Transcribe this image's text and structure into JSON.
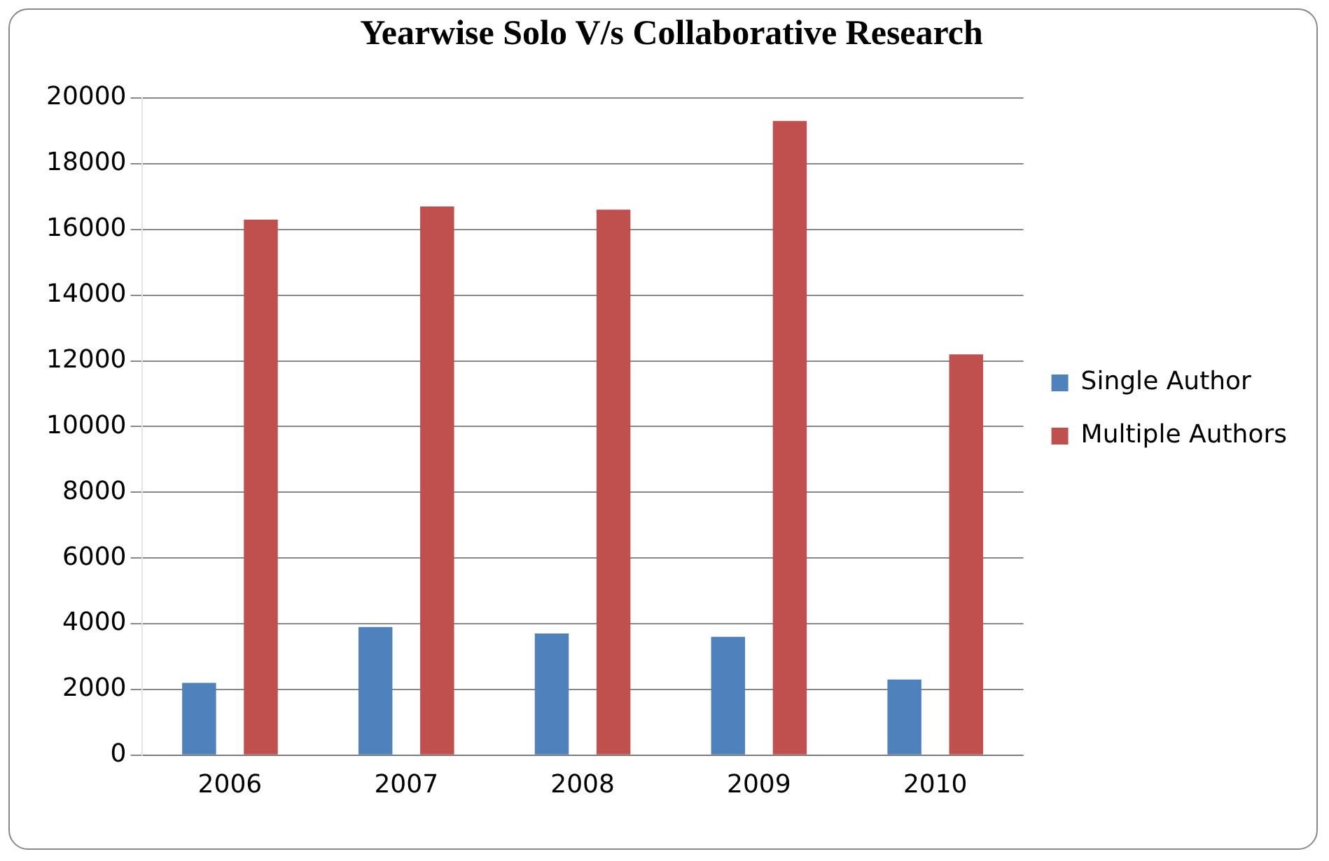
{
  "chart_data": {
    "type": "bar",
    "title": "Yearwise Solo V/s Collaborative Research",
    "categories": [
      "2006",
      "2007",
      "2008",
      "2009",
      "2010"
    ],
    "series": [
      {
        "name": "Single Author",
        "color": "#4f81bd",
        "values": [
          2200,
          3900,
          3700,
          3600,
          2300
        ]
      },
      {
        "name": "Multiple Authors",
        "color": "#c0504d",
        "values": [
          16300,
          16700,
          16600,
          19300,
          12200
        ]
      }
    ],
    "ylim": [
      0,
      20000
    ],
    "yticks": [
      0,
      2000,
      4000,
      6000,
      8000,
      10000,
      12000,
      14000,
      16000,
      18000,
      20000
    ],
    "grid": "y",
    "legend": "right"
  }
}
